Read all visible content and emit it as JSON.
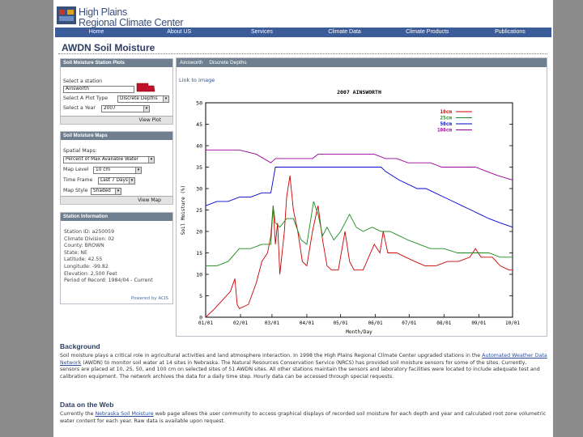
{
  "header": {
    "logo_top": "High Plains",
    "logo_bottom": "Regional Climate Center"
  },
  "nav": [
    "Home",
    "About US",
    "Services",
    "Climate Data",
    "Climate Products",
    "Publications"
  ],
  "page_title": "AWDN Soil Moisture",
  "station_plots": {
    "title": "Soil Moisture Station Plots",
    "select_station_label": "Select a station",
    "station_value": "Ainsworth",
    "plot_type_label": "Select A Plot Type",
    "plot_type_value": "Discrete Depths",
    "year_label": "Select a Year",
    "year_value": "2007",
    "button": "View Plot"
  },
  "maps": {
    "title": "Soil Moisture Maps",
    "spatial_label": "Spatial Maps:",
    "spatial_value": "Percent of Max Available Water",
    "level_label": "Map Level",
    "level_value": "10 cm",
    "time_label": "Time Frame",
    "time_value": "Last 7 Days",
    "style_label": "Map Style",
    "style_value": "Shaded",
    "button": "View Map"
  },
  "station_info": {
    "title": "Station Information",
    "lines": [
      "Station ID: a250059",
      "Climate Division: 02",
      "County: BROWN",
      "State: NE",
      "Latitude: 42.55",
      "Longitude: -99.82",
      "Elevation: 2,500 Feet",
      "Period of Record: 1984/04 - Current"
    ],
    "powered": "Powered by ACIS"
  },
  "right_panel": {
    "tab1": "Ainsworth",
    "tab2": "Discrete Depths",
    "link": "Link to image"
  },
  "chart_data": {
    "type": "line",
    "title": "2007 AINSWORTH",
    "xlabel": "Month/Day",
    "ylabel": "Soil Moisture (%)",
    "ylim": [
      0,
      50
    ],
    "yticks": [
      "0",
      "5",
      "10",
      "15",
      "20",
      "25",
      "30",
      "35",
      "40",
      "45",
      "50"
    ],
    "x_domain": [
      0,
      273
    ],
    "xticks": [
      {
        "day": 0,
        "label": "01/01"
      },
      {
        "day": 31,
        "label": "02/01"
      },
      {
        "day": 59,
        "label": "03/01"
      },
      {
        "day": 90,
        "label": "04/01"
      },
      {
        "day": 120,
        "label": "05/01"
      },
      {
        "day": 151,
        "label": "06/01"
      },
      {
        "day": 181,
        "label": "07/01"
      },
      {
        "day": 212,
        "label": "08/01"
      },
      {
        "day": 243,
        "label": "09/01"
      },
      {
        "day": 273,
        "label": "10/01"
      }
    ],
    "series": [
      {
        "name": "10cm",
        "color": "#cc0000",
        "points": [
          [
            0,
            0
          ],
          [
            8,
            2
          ],
          [
            15,
            4
          ],
          [
            22,
            6
          ],
          [
            26,
            9
          ],
          [
            28,
            3
          ],
          [
            30,
            2
          ],
          [
            38,
            3
          ],
          [
            45,
            8
          ],
          [
            50,
            13
          ],
          [
            55,
            15
          ],
          [
            58,
            19
          ],
          [
            60,
            26
          ],
          [
            62,
            17
          ],
          [
            64,
            22
          ],
          [
            66,
            10
          ],
          [
            70,
            20
          ],
          [
            72,
            28
          ],
          [
            75,
            33
          ],
          [
            78,
            25
          ],
          [
            82,
            20
          ],
          [
            86,
            13
          ],
          [
            90,
            12
          ],
          [
            95,
            20
          ],
          [
            100,
            26
          ],
          [
            104,
            18
          ],
          [
            108,
            12
          ],
          [
            112,
            11
          ],
          [
            118,
            11
          ],
          [
            124,
            20
          ],
          [
            128,
            13
          ],
          [
            132,
            11
          ],
          [
            140,
            11
          ],
          [
            150,
            17
          ],
          [
            155,
            15
          ],
          [
            158,
            20
          ],
          [
            162,
            15
          ],
          [
            170,
            15
          ],
          [
            178,
            14
          ],
          [
            186,
            13
          ],
          [
            195,
            12
          ],
          [
            205,
            12
          ],
          [
            215,
            13
          ],
          [
            225,
            13
          ],
          [
            235,
            14
          ],
          [
            240,
            16
          ],
          [
            245,
            14
          ],
          [
            255,
            14
          ],
          [
            262,
            12
          ],
          [
            270,
            11
          ],
          [
            273,
            11
          ]
        ]
      },
      {
        "name": "25cm",
        "color": "#1a8c1a",
        "points": [
          [
            0,
            12
          ],
          [
            10,
            12
          ],
          [
            20,
            13
          ],
          [
            30,
            16
          ],
          [
            40,
            16
          ],
          [
            50,
            17
          ],
          [
            58,
            17
          ],
          [
            60,
            26
          ],
          [
            62,
            22
          ],
          [
            66,
            21
          ],
          [
            72,
            23
          ],
          [
            78,
            23
          ],
          [
            85,
            18
          ],
          [
            90,
            17
          ],
          [
            96,
            27
          ],
          [
            100,
            24
          ],
          [
            104,
            19
          ],
          [
            108,
            21
          ],
          [
            114,
            18
          ],
          [
            120,
            20
          ],
          [
            128,
            24
          ],
          [
            134,
            21
          ],
          [
            140,
            20
          ],
          [
            148,
            21
          ],
          [
            156,
            20
          ],
          [
            164,
            20
          ],
          [
            172,
            19
          ],
          [
            180,
            18
          ],
          [
            190,
            17
          ],
          [
            200,
            16
          ],
          [
            212,
            16
          ],
          [
            224,
            15
          ],
          [
            236,
            15
          ],
          [
            244,
            15
          ],
          [
            252,
            15
          ],
          [
            262,
            14
          ],
          [
            273,
            14
          ]
        ]
      },
      {
        "name": "50cm",
        "color": "#0000cc",
        "points": [
          [
            0,
            26
          ],
          [
            10,
            27
          ],
          [
            20,
            27
          ],
          [
            30,
            28
          ],
          [
            40,
            28
          ],
          [
            50,
            29
          ],
          [
            58,
            29
          ],
          [
            62,
            35
          ],
          [
            66,
            35
          ],
          [
            72,
            35
          ],
          [
            80,
            35
          ],
          [
            90,
            35
          ],
          [
            100,
            35
          ],
          [
            110,
            35
          ],
          [
            120,
            35
          ],
          [
            130,
            35
          ],
          [
            140,
            35
          ],
          [
            150,
            35
          ],
          [
            156,
            35
          ],
          [
            160,
            34
          ],
          [
            166,
            33
          ],
          [
            172,
            32
          ],
          [
            180,
            31
          ],
          [
            188,
            30
          ],
          [
            196,
            30
          ],
          [
            204,
            29
          ],
          [
            212,
            28
          ],
          [
            220,
            27
          ],
          [
            228,
            26
          ],
          [
            236,
            25
          ],
          [
            244,
            24
          ],
          [
            252,
            23
          ],
          [
            262,
            22
          ],
          [
            273,
            21
          ]
        ]
      },
      {
        "name": "100cm",
        "color": "#990099",
        "points": [
          [
            0,
            39
          ],
          [
            15,
            39
          ],
          [
            30,
            39
          ],
          [
            45,
            38
          ],
          [
            58,
            36
          ],
          [
            62,
            37
          ],
          [
            66,
            37
          ],
          [
            75,
            37
          ],
          [
            85,
            37
          ],
          [
            95,
            37
          ],
          [
            100,
            38
          ],
          [
            110,
            38
          ],
          [
            120,
            38
          ],
          [
            130,
            38
          ],
          [
            140,
            38
          ],
          [
            150,
            38
          ],
          [
            160,
            37
          ],
          [
            170,
            37
          ],
          [
            180,
            36
          ],
          [
            190,
            36
          ],
          [
            200,
            36
          ],
          [
            210,
            35
          ],
          [
            220,
            35
          ],
          [
            230,
            35
          ],
          [
            240,
            35
          ],
          [
            250,
            34
          ],
          [
            260,
            33
          ],
          [
            273,
            32
          ]
        ]
      }
    ]
  },
  "background": {
    "heading": "Background",
    "text_a": "Soil moisture plays a critical role in agricultural activities and land atmosphere interaction. In 1998 the High Plains Regional Climate Center upgraded stations in the ",
    "link": "Automated Weather Data Network",
    "text_b": " (AWDN) to monitor soil water at 14 sites in Nebraska. The Natural Resources Conservation Service (NRCS) has provided soil moisture sensors for some of the sites. Currently, sensors are placed at 10, 25, 50, and 100 cm on selected sites of 51 AWDN sites. All other stations maintain the sensors and laboratory facilities were located to include adequate test and calibration equipment. The network archives the data for a daily time step. Hourly data can be accessed through special requests."
  },
  "web": {
    "heading": "Data on the Web",
    "text_a": "Currently the ",
    "link": "Nebraska Soil Moisture",
    "text_b": " web page allows the user community to access graphical displays of recorded soil moisture for each depth and year and calculated root zone volumetric water content for each year. Raw data is available upon request."
  }
}
